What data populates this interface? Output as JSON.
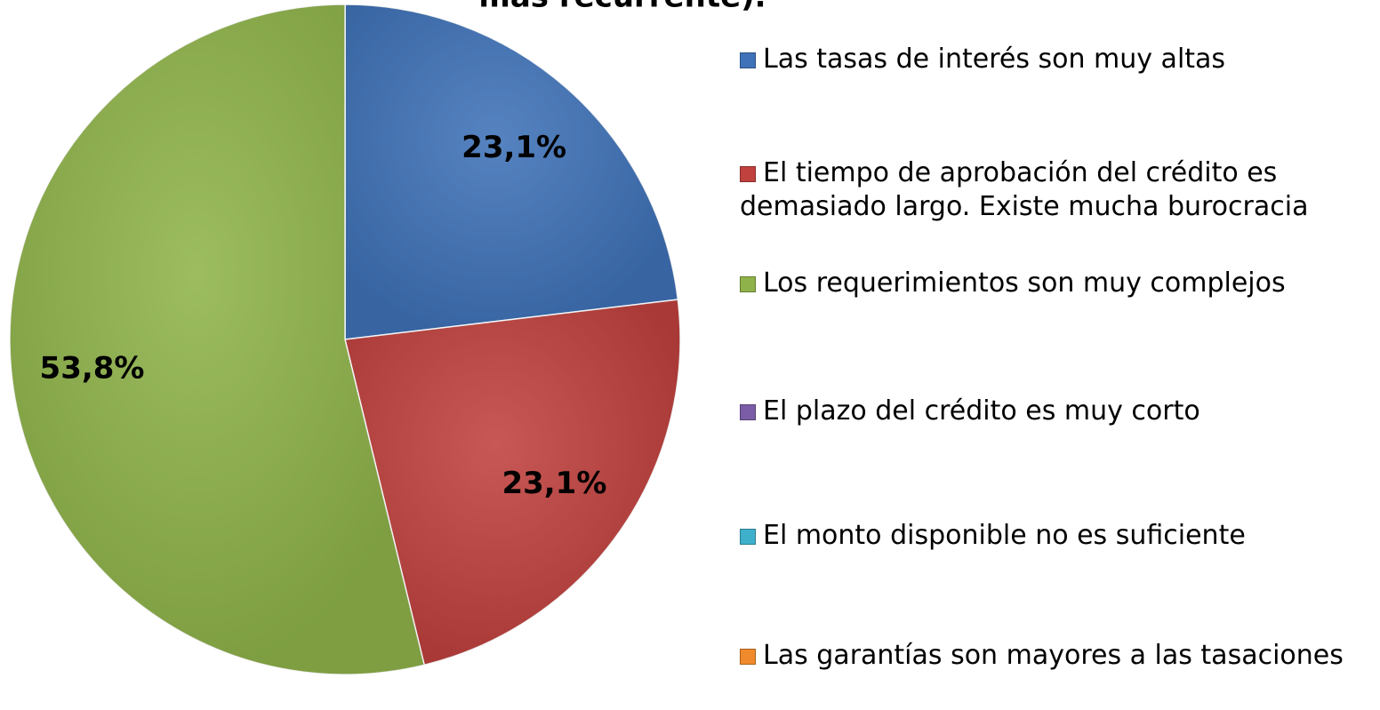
{
  "chart_data": {
    "type": "pie",
    "title": "más recurrente).",
    "categories": [
      "Las tasas de interés son muy altas",
      "El tiempo de aprobación del crédito es demasiado largo. Existe mucha burocracia",
      "Los requerimientos son muy complejos",
      "El plazo del crédito es muy corto",
      "El monto disponible no es suficiente",
      "Las garantías son mayores a las tasaciones"
    ],
    "values": [
      23.1,
      23.1,
      53.8,
      0,
      0,
      0
    ],
    "value_labels": [
      "23,1%",
      "23,1%",
      "53,8%",
      null,
      null,
      null
    ],
    "colors": [
      "#3f72b8",
      "#c0413e",
      "#8fb34a",
      "#7b5ca6",
      "#3fb0cc",
      "#f08a2c"
    ]
  }
}
